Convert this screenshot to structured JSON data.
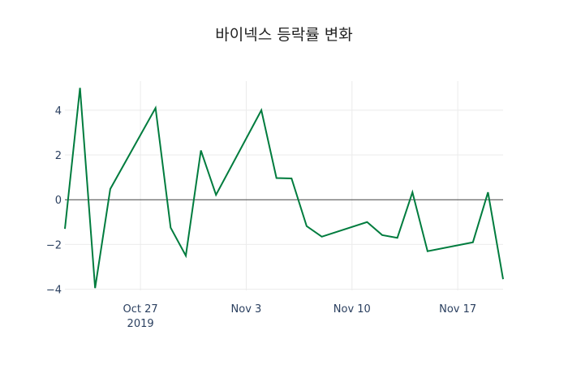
{
  "chart_data": {
    "type": "line",
    "title": "바이넥스 등락률 변화",
    "xlabel": "",
    "ylabel": "",
    "x": [
      "2019-10-22",
      "2019-10-23",
      "2019-10-24",
      "2019-10-25",
      "2019-10-28",
      "2019-10-29",
      "2019-10-30",
      "2019-10-31",
      "2019-11-01",
      "2019-11-04",
      "2019-11-05",
      "2019-11-06",
      "2019-11-07",
      "2019-11-08",
      "2019-11-11",
      "2019-11-12",
      "2019-11-13",
      "2019-11-14",
      "2019-11-15",
      "2019-11-18",
      "2019-11-19",
      "2019-11-20"
    ],
    "series": [
      {
        "name": "등락률",
        "color": "#007c3e",
        "values": [
          -1.3,
          5.0,
          -3.95,
          0.48,
          4.1,
          -1.25,
          -2.5,
          2.2,
          0.22,
          4.0,
          0.97,
          0.95,
          -1.18,
          -1.65,
          -1.0,
          -1.58,
          -1.7,
          0.33,
          -2.3,
          -1.9,
          0.33,
          -3.55
        ]
      }
    ],
    "x_ticks": [
      {
        "date": "2019-10-27",
        "label": "Oct 27",
        "sublabel": "2019"
      },
      {
        "date": "2019-11-03",
        "label": "Nov 3"
      },
      {
        "date": "2019-11-10",
        "label": "Nov 10"
      },
      {
        "date": "2019-11-17",
        "label": "Nov 17"
      }
    ],
    "y_ticks": [
      4,
      2,
      0,
      -2,
      -4
    ],
    "y_tick_labels": [
      "4",
      "2",
      "0",
      "−2",
      "−4"
    ],
    "ylim": [
      -4.05,
      5.3
    ],
    "xlim": [
      "2019-10-22",
      "2019-11-20"
    ],
    "grid": true,
    "zero_line": true,
    "legend": false
  }
}
